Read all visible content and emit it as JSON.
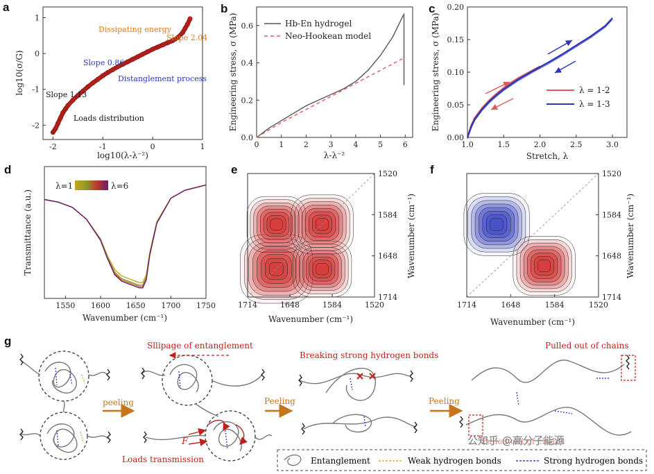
{
  "panel_letters": {
    "a": "a",
    "b": "b",
    "c": "c",
    "d": "d",
    "e": "e",
    "f": "f",
    "g": "g"
  },
  "chart_data": [
    {
      "id": "a",
      "type": "scatter",
      "title": "",
      "xlabel": "log10(λ-λ⁻²)",
      "ylabel": "log10(σ/G)",
      "xlim": [
        -2.2,
        1.0
      ],
      "ylim": [
        -2.4,
        1.3
      ],
      "xticks": [
        -2,
        -1,
        0,
        1
      ],
      "yticks": [
        -2,
        -1,
        0,
        1
      ],
      "xtick_labels": [
        "-2",
        "-1",
        "0",
        "1"
      ],
      "ytick_labels": [
        "-2",
        "-1",
        "0",
        "1"
      ],
      "annotations": [
        {
          "text": "Dissipating energy",
          "color": "#e07b1f"
        },
        {
          "text": "Slope 2.04",
          "color": "#e07b1f"
        },
        {
          "text": "Slope 0.86",
          "color": "#2b36c8"
        },
        {
          "text": "Distanglement process",
          "color": "#2b36c8"
        },
        {
          "text": "Slope 1.13",
          "color": "#111111"
        },
        {
          "text": "Loads distribution",
          "color": "#111111"
        }
      ],
      "marker_color": "#c0211c",
      "series": [
        {
          "x": [
            -2.0,
            -1.95,
            -1.9,
            -1.85,
            -1.8,
            -1.75,
            -1.7,
            -1.6,
            -1.5,
            -1.4,
            -1.3,
            -1.2,
            -1.1,
            -1.0,
            -0.9,
            -0.8,
            -0.7,
            -0.6,
            -0.5,
            -0.4,
            -0.3,
            -0.2,
            -0.1,
            0.0,
            0.1,
            0.2,
            0.3,
            0.4,
            0.5,
            0.6,
            0.65,
            0.7,
            0.75
          ],
          "y": [
            -2.2,
            -2.1,
            -1.95,
            -1.8,
            -1.65,
            -1.55,
            -1.45,
            -1.3,
            -1.17,
            -1.05,
            -0.93,
            -0.82,
            -0.72,
            -0.62,
            -0.53,
            -0.45,
            -0.37,
            -0.3,
            -0.23,
            -0.16,
            -0.09,
            -0.02,
            0.05,
            0.12,
            0.18,
            0.24,
            0.3,
            0.36,
            0.44,
            0.58,
            0.7,
            0.82,
            0.97
          ]
        }
      ]
    },
    {
      "id": "b",
      "type": "line",
      "xlabel": "λ-λ⁻²",
      "ylabel": "Engineering stress, σ (MPa)",
      "xlim": [
        0,
        6.3
      ],
      "ylim": [
        0,
        0.7
      ],
      "xticks": [
        0,
        1,
        2,
        3,
        4,
        5,
        6
      ],
      "yticks": [
        0,
        0.2,
        0.4,
        0.6
      ],
      "xtick_labels": [
        "0",
        "1",
        "2",
        "3",
        "4",
        "5",
        "6"
      ],
      "ytick_labels": [
        "0.0",
        "0.2",
        "0.4",
        "0.6"
      ],
      "series": [
        {
          "name": "Hb-En hydrogel",
          "color": "#555555",
          "dash": "",
          "x": [
            0,
            0.5,
            1,
            1.5,
            2,
            2.5,
            3,
            3.5,
            4,
            4.5,
            5,
            5.5,
            5.9,
            5.95,
            5.95
          ],
          "y": [
            0,
            0.05,
            0.09,
            0.13,
            0.17,
            0.2,
            0.23,
            0.26,
            0.3,
            0.36,
            0.44,
            0.54,
            0.65,
            0.66,
            0.28
          ]
        },
        {
          "name": "Neo-Hookean model",
          "color": "#e05a5a",
          "dash": "5,4",
          "x": [
            0,
            1,
            2,
            3,
            4,
            5,
            6
          ],
          "y": [
            0,
            0.08,
            0.15,
            0.22,
            0.29,
            0.36,
            0.43
          ]
        }
      ]
    },
    {
      "id": "c",
      "type": "line",
      "xlabel": "Stretch, λ",
      "ylabel": "Engineering stress, σ (MPa)",
      "xlim": [
        1.0,
        3.2
      ],
      "ylim": [
        0,
        0.2
      ],
      "xticks": [
        1.0,
        1.5,
        2.0,
        2.5,
        3.0
      ],
      "yticks": [
        0,
        0.05,
        0.1,
        0.15,
        0.2
      ],
      "xtick_labels": [
        "1.0",
        "1.5",
        "2.0",
        "2.5",
        "3.0"
      ],
      "ytick_labels": [
        "0.00",
        "0.05",
        "0.10",
        "0.15",
        "0.20"
      ],
      "series": [
        {
          "name": "λ = 1-2",
          "color": "#e05a5a",
          "x": [
            1.0,
            1.05,
            1.1,
            1.2,
            1.3,
            1.4,
            1.5,
            1.6,
            1.7,
            1.8,
            1.9,
            2.0
          ],
          "y": [
            0,
            0.018,
            0.03,
            0.045,
            0.057,
            0.067,
            0.076,
            0.084,
            0.091,
            0.097,
            0.103,
            0.109
          ]
        },
        {
          "name": "λ = 1-3",
          "color": "#2c35b8",
          "x": [
            1.0,
            1.05,
            1.1,
            1.2,
            1.3,
            1.4,
            1.5,
            1.7,
            1.9,
            2.1,
            2.3,
            2.5,
            2.7,
            2.9,
            3.0
          ],
          "y": [
            0,
            0.016,
            0.028,
            0.043,
            0.055,
            0.065,
            0.074,
            0.089,
            0.102,
            0.114,
            0.127,
            0.141,
            0.155,
            0.171,
            0.183
          ]
        }
      ],
      "legend_position": "center-right"
    },
    {
      "id": "d",
      "type": "line",
      "xlabel": "Wavenumber (cm⁻¹)",
      "ylabel": "Transmittance (a.u.)",
      "xlim": [
        1520,
        1750
      ],
      "ylim": [
        0,
        1
      ],
      "xticks": [
        1550,
        1600,
        1650,
        1700,
        1750
      ],
      "xtick_labels": [
        "1550",
        "1600",
        "1650",
        "1700",
        "1750"
      ],
      "colorbar": {
        "left_label": "λ=1",
        "right_label": "λ=6",
        "colors": [
          "#c9a21a",
          "#8a9a2a",
          "#c0392b",
          "#6a1f6d"
        ]
      },
      "series_x": [
        1520,
        1540,
        1560,
        1580,
        1600,
        1610,
        1620,
        1630,
        1640,
        1650,
        1655,
        1660,
        1665,
        1670,
        1680,
        1700,
        1720,
        1750
      ],
      "series": [
        {
          "name": "1",
          "color": "#c9a21a",
          "y": [
            0.75,
            0.73,
            0.69,
            0.6,
            0.45,
            0.32,
            0.22,
            0.17,
            0.15,
            0.13,
            0.12,
            0.12,
            0.18,
            0.35,
            0.58,
            0.76,
            0.82,
            0.86
          ]
        },
        {
          "name": "2",
          "color": "#7f9e34",
          "y": [
            0.75,
            0.73,
            0.69,
            0.6,
            0.45,
            0.31,
            0.2,
            0.15,
            0.13,
            0.11,
            0.1,
            0.1,
            0.16,
            0.34,
            0.58,
            0.76,
            0.82,
            0.86
          ]
        },
        {
          "name": "3",
          "color": "#c76a2d",
          "y": [
            0.75,
            0.73,
            0.69,
            0.6,
            0.44,
            0.3,
            0.19,
            0.14,
            0.12,
            0.1,
            0.09,
            0.09,
            0.15,
            0.33,
            0.57,
            0.76,
            0.82,
            0.86
          ]
        },
        {
          "name": "6",
          "color": "#6a1f6d",
          "y": [
            0.75,
            0.73,
            0.69,
            0.6,
            0.44,
            0.3,
            0.18,
            0.13,
            0.11,
            0.09,
            0.08,
            0.08,
            0.14,
            0.33,
            0.57,
            0.76,
            0.82,
            0.86
          ]
        }
      ]
    },
    {
      "id": "e",
      "type": "heatmap",
      "xlabel": "Wavenumber (cm⁻¹)",
      "ylabel": "Wavenumber (cm⁻¹)",
      "xtick_labels": [
        "1714",
        "1648",
        "1584",
        "1520"
      ],
      "ytick_labels": [
        "1520",
        "1584",
        "1648",
        "1714"
      ],
      "peaks": [
        {
          "x": 1670,
          "y": 1670,
          "intensity": 1.0,
          "sign": 1
        },
        {
          "x": 1600,
          "y": 1670,
          "intensity": 0.8,
          "sign": 1
        },
        {
          "x": 1670,
          "y": 1600,
          "intensity": 0.8,
          "sign": 1
        },
        {
          "x": 1600,
          "y": 1600,
          "intensity": 0.85,
          "sign": 1
        }
      ]
    },
    {
      "id": "f",
      "type": "heatmap",
      "xlabel": "Wavenumber (cm⁻¹)",
      "ylabel": "Wavenumber (cm⁻¹)",
      "xtick_labels": [
        "1714",
        "1648",
        "1584",
        "1520"
      ],
      "ytick_labels": [
        "1520",
        "1584",
        "1648",
        "1714"
      ],
      "peaks": [
        {
          "x": 1670,
          "y": 1600,
          "intensity": 0.9,
          "sign": -1
        },
        {
          "x": 1600,
          "y": 1665,
          "intensity": 0.85,
          "sign": 1
        }
      ]
    }
  ],
  "schematic": {
    "arrow1": "peeling",
    "arrow2": "Peeling",
    "arrow3": "Peeling",
    "label_slippage": "Sllipage of entanglement",
    "label_breaking": "Breaking strong hydrogen bonds",
    "label_pulled": "Pulled out of chains",
    "label_pulled2": "Pulled out of chains",
    "label_loads": "Loads transmission",
    "label_F": "F",
    "legend_entanglement": "Entanglement",
    "legend_weak": "Weak hydrogen bonds",
    "legend_strong": "Strong hydrogen bonds",
    "watermark": "公知乎 @高分子能源",
    "colors": {
      "arrow": "#c8741a",
      "red": "#c0211c",
      "blue": "#3a45c8",
      "orange": "#e3a33a",
      "chain": "#777777"
    }
  }
}
